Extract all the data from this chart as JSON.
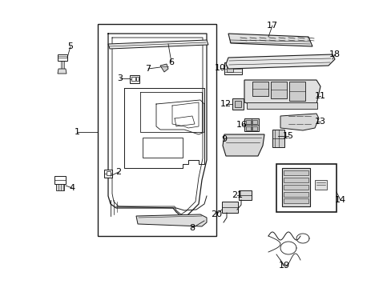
{
  "bg": "#ffffff",
  "lc": "#1a1a1a",
  "fig_width": 4.89,
  "fig_height": 3.6,
  "dpi": 100
}
